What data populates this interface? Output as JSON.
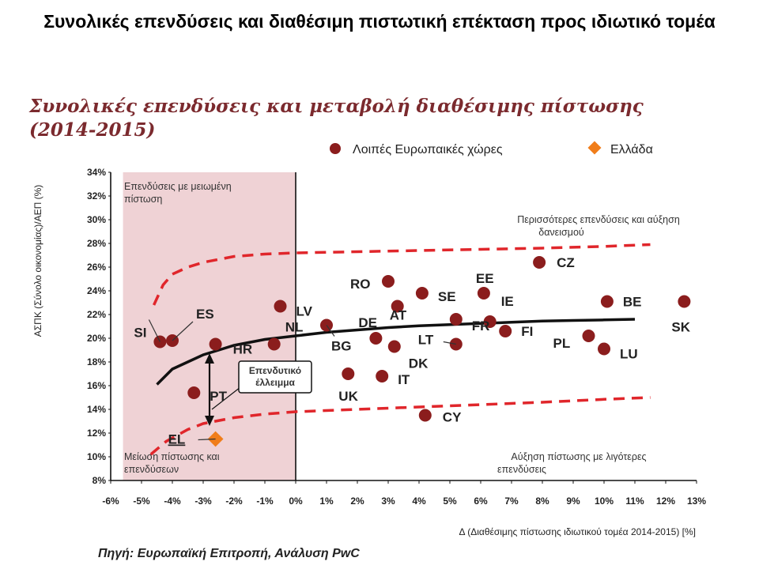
{
  "slide": {
    "title": "Συνολικές επενδύσεις και διαθέσιμη πιστωτική επέκταση προς ιδιωτικό τομέα"
  },
  "chart_data": {
    "type": "scatter",
    "title": "Συνολικές επενδύσεις και μεταβολή διαθέσιμης πίστωσης",
    "subtitle": "(2014-2015)",
    "xlabel": "Δ (Διαθέσιμης πίστωσης ιδιωτικού τομέα 2014-2015) [%]",
    "ylabel": "ΑΣΠΚ (Σύνολο οικονομίας)/ΑΕΠ (%)",
    "xlim": [
      -6,
      13
    ],
    "ylim": [
      8,
      34
    ],
    "x_ticks": [
      "-6%",
      "-5%",
      "-4%",
      "-3%",
      "-2%",
      "-1%",
      "0%",
      "1%",
      "2%",
      "3%",
      "4%",
      "5%",
      "6%",
      "7%",
      "8%",
      "9%",
      "10%",
      "11%",
      "12%",
      "13%"
    ],
    "y_ticks": [
      "8%",
      "10%",
      "12%",
      "14%",
      "16%",
      "18%",
      "20%",
      "22%",
      "24%",
      "26%",
      "28%",
      "30%",
      "32%",
      "34%"
    ],
    "legend_position": "top-right",
    "legend": [
      {
        "label": "Λοιπές Ευρωπαικές χώρες",
        "marker": "circle",
        "color": "#8b1d1d"
      },
      {
        "label": "Ελλάδα",
        "marker": "diamond",
        "color": "#f07d1a"
      }
    ],
    "series": [
      {
        "name": "Λοιπές Ευρωπαικές χώρες",
        "color": "#8b1d1d",
        "points": [
          {
            "label": "SI",
            "x": -4.4,
            "y": 19.7
          },
          {
            "label": "ES",
            "x": -4.0,
            "y": 19.8
          },
          {
            "label": "HR",
            "x": -2.6,
            "y": 19.5
          },
          {
            "label": "PT",
            "x": -3.3,
            "y": 15.4
          },
          {
            "label": "NL",
            "x": -0.7,
            "y": 19.5
          },
          {
            "label": "LV",
            "x": -0.5,
            "y": 22.7
          },
          {
            "label": "BG",
            "x": 1.0,
            "y": 21.1
          },
          {
            "label": "DE",
            "x": 2.6,
            "y": 20.0
          },
          {
            "label": "UK",
            "x": 1.7,
            "y": 17.0
          },
          {
            "label": "IT",
            "x": 2.8,
            "y": 16.8
          },
          {
            "label": "RO",
            "x": 3.0,
            "y": 24.8
          },
          {
            "label": "AT",
            "x": 3.3,
            "y": 22.7
          },
          {
            "label": "DK",
            "x": 3.2,
            "y": 19.3
          },
          {
            "label": "SE",
            "x": 4.1,
            "y": 23.8
          },
          {
            "label": "LT",
            "x": 5.2,
            "y": 19.5
          },
          {
            "label": "CY",
            "x": 4.2,
            "y": 13.5
          },
          {
            "label": "EE",
            "x": 6.1,
            "y": 23.8
          },
          {
            "label": "FR",
            "x": 5.2,
            "y": 21.6
          },
          {
            "label": "IE",
            "x": 6.3,
            "y": 21.4
          },
          {
            "label": "FI",
            "x": 6.8,
            "y": 20.6
          },
          {
            "label": "CZ",
            "x": 7.9,
            "y": 26.4
          },
          {
            "label": "PL",
            "x": 9.5,
            "y": 20.2
          },
          {
            "label": "LU",
            "x": 10.0,
            "y": 19.1
          },
          {
            "label": "BE",
            "x": 10.1,
            "y": 23.1
          },
          {
            "label": "SK",
            "x": 12.6,
            "y": 23.1
          }
        ]
      },
      {
        "name": "Ελλάδα",
        "color": "#f07d1a",
        "points": [
          {
            "label": "EL",
            "x": -2.6,
            "y": 11.5
          }
        ]
      }
    ],
    "trend_line": {
      "style": "solid",
      "points": [
        [
          -4.5,
          16.1
        ],
        [
          -4,
          17.4
        ],
        [
          -3.5,
          18.0
        ],
        [
          -3,
          18.6
        ],
        [
          -2.5,
          19.0
        ],
        [
          -2,
          19.4
        ],
        [
          -1,
          19.9
        ],
        [
          0,
          20.2
        ],
        [
          1,
          20.5
        ],
        [
          2,
          20.7
        ],
        [
          3,
          20.9
        ],
        [
          4,
          21.05
        ],
        [
          5,
          21.15
        ],
        [
          6,
          21.25
        ],
        [
          7,
          21.35
        ],
        [
          8,
          21.45
        ],
        [
          9,
          21.5
        ],
        [
          10,
          21.55
        ],
        [
          11,
          21.6
        ]
      ]
    },
    "upper_band": {
      "style": "dashed",
      "color": "#e0262b",
      "points": [
        [
          -4.6,
          22.8
        ],
        [
          -4.3,
          24.5
        ],
        [
          -4,
          25.4
        ],
        [
          -3.5,
          26.0
        ],
        [
          -3,
          26.4
        ],
        [
          -2,
          26.9
        ],
        [
          -1,
          27.1
        ],
        [
          0,
          27.2
        ],
        [
          2,
          27.3
        ],
        [
          4,
          27.4
        ],
        [
          6,
          27.5
        ],
        [
          8,
          27.6
        ],
        [
          10,
          27.75
        ],
        [
          11.5,
          27.9
        ]
      ]
    },
    "lower_band": {
      "style": "dashed",
      "color": "#e0262b",
      "points": [
        [
          -4.7,
          10.2
        ],
        [
          -4.2,
          11.3
        ],
        [
          -3.5,
          12.3
        ],
        [
          -3,
          12.8
        ],
        [
          -2,
          13.3
        ],
        [
          -1,
          13.6
        ],
        [
          0,
          13.8
        ],
        [
          2,
          14.0
        ],
        [
          4,
          14.2
        ],
        [
          6,
          14.4
        ],
        [
          8,
          14.6
        ],
        [
          10,
          14.85
        ],
        [
          11.5,
          15.0
        ]
      ]
    },
    "shaded_region": {
      "x_from": -5.6,
      "x_to": 0,
      "color": "#efd2d5"
    },
    "annotations": {
      "top_left": "Επενδύσεις με μειωμένη πίστωση",
      "top_right": "Περισσότερες επενδύσεις και αύξηση δανεισμού",
      "bottom_left": "Μείωση πίστωσης και επενδύσεων",
      "bottom_right": "Αύξηση πίστωσης με λιγότερες επενδύσεις",
      "gap_box": "Επενδυτικό έλλειμμα"
    },
    "source": "Πηγή: Ευρωπαϊκή Επιτροπή, Ανάλυση PwC"
  }
}
